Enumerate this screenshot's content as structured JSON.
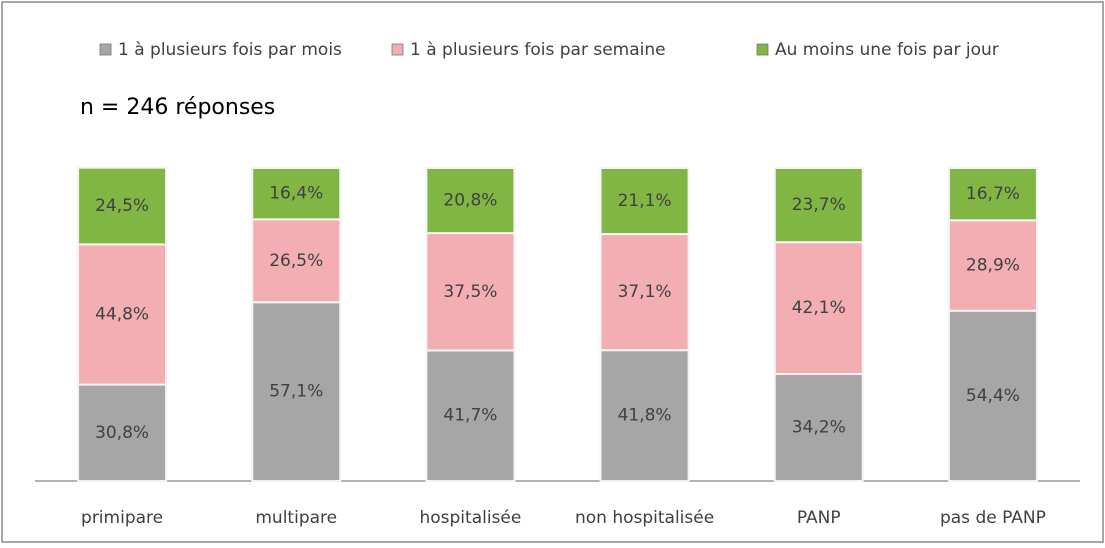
{
  "chart_data": {
    "type": "stacked_bar",
    "annotation": "n = 246 réponses",
    "categories": [
      "primipare",
      "multipare",
      "hospitalisée",
      "non hospitalisée",
      "PANP",
      "pas de PANP"
    ],
    "series": [
      {
        "name": "1 à plusieurs fois par mois",
        "color": "#a6a6a6",
        "values": [
          30.8,
          57.1,
          41.7,
          41.8,
          34.2,
          54.4
        ],
        "value_labels": [
          "30,8%",
          "57,1%",
          "41,7%",
          "41,8%",
          "34,2%",
          "54,4%"
        ]
      },
      {
        "name": "1 à plusieurs fois par semaine",
        "color": "#f3aeb4",
        "values": [
          44.8,
          26.5,
          37.5,
          37.1,
          42.1,
          28.9
        ],
        "value_labels": [
          "44,8%",
          "26,5%",
          "37,5%",
          "37,1%",
          "42,1%",
          "28,9%"
        ]
      },
      {
        "name": "Au moins une fois par jour",
        "color": "#82b644",
        "values": [
          24.5,
          16.4,
          20.8,
          21.1,
          23.7,
          16.7
        ],
        "value_labels": [
          "24,5%",
          "16,4%",
          "20,8%",
          "21,1%",
          "23,7%",
          "16,7%"
        ]
      }
    ],
    "ylim": [
      0,
      100
    ],
    "legend": "top"
  }
}
